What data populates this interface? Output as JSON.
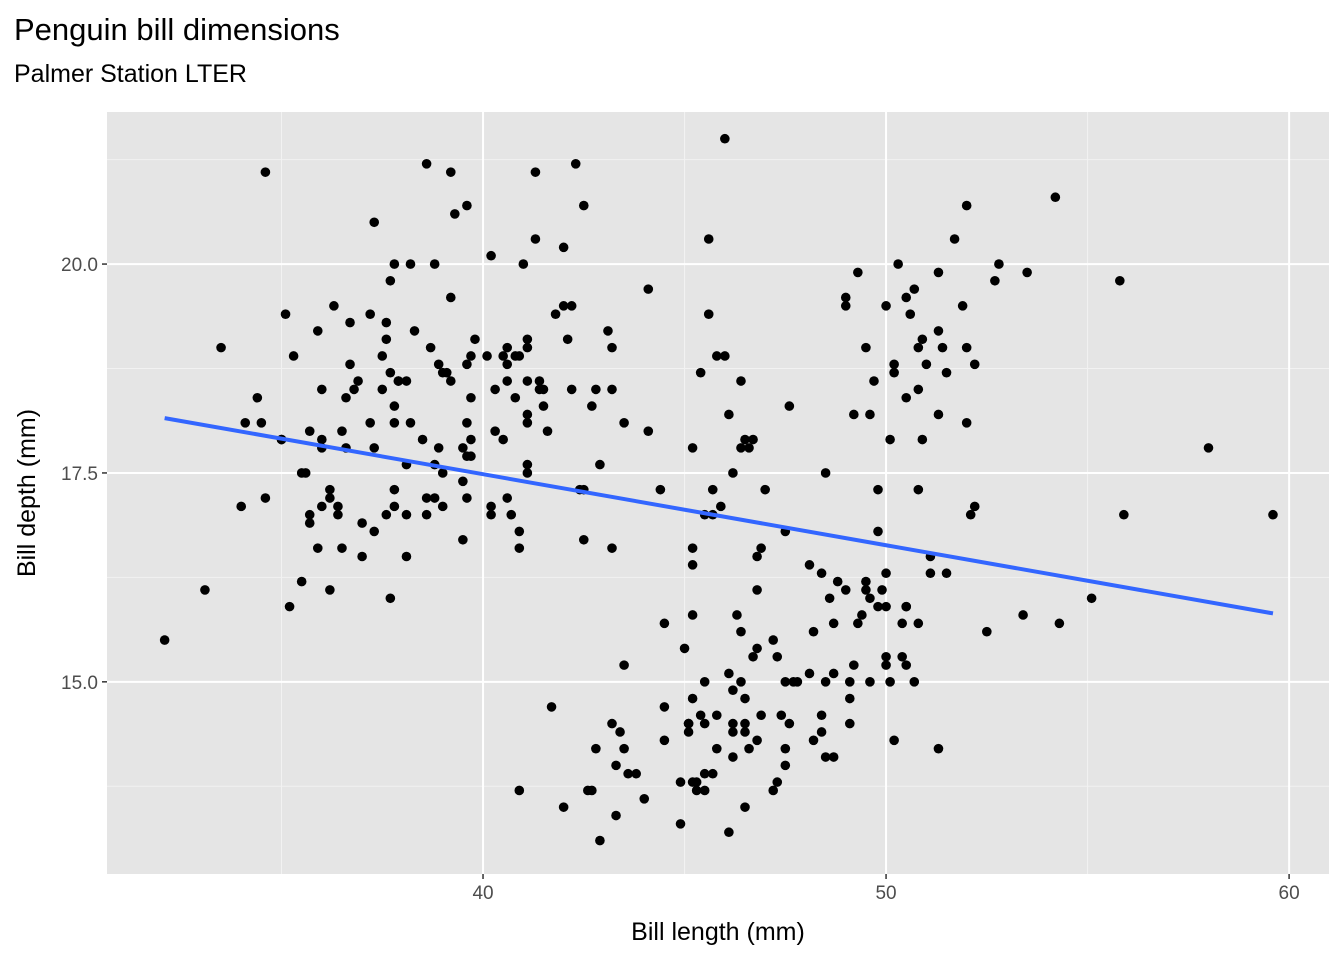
{
  "chart_data": {
    "type": "scatter",
    "title": "Penguin bill dimensions",
    "subtitle": "Palmer Station LTER",
    "xlabel": "Bill length (mm)",
    "ylabel": "Bill depth (mm)",
    "xlim": [
      30.67,
      60.99
    ],
    "ylim": [
      12.7,
      21.82
    ],
    "x_ticks": [
      40,
      50,
      60
    ],
    "x_tick_labels": [
      "40",
      "50",
      "60"
    ],
    "y_ticks": [
      15,
      17.5,
      20
    ],
    "y_tick_labels": [
      "15.0",
      "17.5",
      "20.0"
    ],
    "grid": true,
    "point_color": "#000000",
    "panel_background": "#E5E5E5",
    "trend_line": {
      "method": "lm",
      "color": "#3366FF",
      "intercept": 20.885,
      "slope": -0.085,
      "x_range": [
        32.1,
        59.6
      ]
    },
    "points": [
      [
        39.1,
        18.7
      ],
      [
        39.5,
        17.4
      ],
      [
        40.3,
        18
      ],
      [
        36.7,
        19.3
      ],
      [
        39.3,
        20.6
      ],
      [
        38.9,
        17.8
      ],
      [
        39.2,
        19.6
      ],
      [
        34.1,
        18.1
      ],
      [
        42,
        20.2
      ],
      [
        37.8,
        17.1
      ],
      [
        37.8,
        17.3
      ],
      [
        41.1,
        17.6
      ],
      [
        38.6,
        21.2
      ],
      [
        34.6,
        21.1
      ],
      [
        36.6,
        17.8
      ],
      [
        38.7,
        19
      ],
      [
        42.5,
        20.7
      ],
      [
        34.4,
        18.4
      ],
      [
        46,
        21.5
      ],
      [
        37.8,
        18.3
      ],
      [
        37.7,
        18.7
      ],
      [
        35.9,
        19.2
      ],
      [
        38.2,
        18.1
      ],
      [
        38.8,
        17.2
      ],
      [
        35.3,
        18.9
      ],
      [
        40.6,
        18.6
      ],
      [
        40.5,
        17.9
      ],
      [
        37.9,
        18.6
      ],
      [
        40.5,
        18.9
      ],
      [
        39.5,
        16.7
      ],
      [
        37.2,
        18.1
      ],
      [
        39.5,
        17.8
      ],
      [
        40.9,
        18.9
      ],
      [
        36.4,
        17
      ],
      [
        39.2,
        21.1
      ],
      [
        38.8,
        20
      ],
      [
        42.2,
        18.5
      ],
      [
        37.6,
        19.3
      ],
      [
        39.8,
        19.1
      ],
      [
        36.5,
        18
      ],
      [
        40.8,
        18.4
      ],
      [
        36,
        18.5
      ],
      [
        44.1,
        19.7
      ],
      [
        37,
        16.9
      ],
      [
        39.6,
        18.8
      ],
      [
        41.1,
        19
      ],
      [
        37.5,
        18.9
      ],
      [
        36,
        17.9
      ],
      [
        42.3,
        21.2
      ],
      [
        39.6,
        17.7
      ],
      [
        40.1,
        18.9
      ],
      [
        35,
        17.9
      ],
      [
        42,
        19.5
      ],
      [
        34.5,
        18.1
      ],
      [
        41.4,
        18.6
      ],
      [
        39,
        17.5
      ],
      [
        40.6,
        18.8
      ],
      [
        36.5,
        16.6
      ],
      [
        37.6,
        19.1
      ],
      [
        35.7,
        16.9
      ],
      [
        41.3,
        21.1
      ],
      [
        37.6,
        17
      ],
      [
        41.1,
        18.2
      ],
      [
        36.4,
        17.1
      ],
      [
        41.6,
        18
      ],
      [
        35.5,
        16.2
      ],
      [
        41.1,
        19.1
      ],
      [
        35.9,
        16.6
      ],
      [
        41.8,
        19.4
      ],
      [
        33.5,
        19
      ],
      [
        39.7,
        18.4
      ],
      [
        39.6,
        17.2
      ],
      [
        45.8,
        18.9
      ],
      [
        35.5,
        17.5
      ],
      [
        42.8,
        18.5
      ],
      [
        40.9,
        16.8
      ],
      [
        37.2,
        19.4
      ],
      [
        36.2,
        16.1
      ],
      [
        42.1,
        19.1
      ],
      [
        34.6,
        17.2
      ],
      [
        42.9,
        17.6
      ],
      [
        36.7,
        18.8
      ],
      [
        35.1,
        19.4
      ],
      [
        37.3,
        17.8
      ],
      [
        41.3,
        20.3
      ],
      [
        36.3,
        19.5
      ],
      [
        36.9,
        18.6
      ],
      [
        38.3,
        19.2
      ],
      [
        38.9,
        18.8
      ],
      [
        35.7,
        18
      ],
      [
        41.1,
        18.1
      ],
      [
        34,
        17.1
      ],
      [
        39.6,
        18.1
      ],
      [
        36.2,
        17.3
      ],
      [
        40.8,
        18.9
      ],
      [
        38.1,
        18.6
      ],
      [
        40.3,
        18.5
      ],
      [
        33.1,
        16.1
      ],
      [
        43.2,
        18.5
      ],
      [
        35,
        17.9
      ],
      [
        41,
        20
      ],
      [
        37.7,
        16
      ],
      [
        37.8,
        20
      ],
      [
        37.9,
        18.6
      ],
      [
        39.7,
        18.9
      ],
      [
        38.6,
        17.2
      ],
      [
        38.2,
        20
      ],
      [
        38.1,
        17
      ],
      [
        43.2,
        19
      ],
      [
        38.1,
        16.5
      ],
      [
        45.6,
        20.3
      ],
      [
        39.7,
        17.7
      ],
      [
        42.2,
        19.5
      ],
      [
        39.6,
        20.7
      ],
      [
        42.7,
        18.3
      ],
      [
        38.6,
        17
      ],
      [
        37.3,
        20.5
      ],
      [
        35.7,
        17
      ],
      [
        41.1,
        18.6
      ],
      [
        36.2,
        17.2
      ],
      [
        37.7,
        19.8
      ],
      [
        40.2,
        17
      ],
      [
        41.4,
        18.5
      ],
      [
        35.2,
        15.9
      ],
      [
        40.6,
        19
      ],
      [
        38.8,
        17.6
      ],
      [
        41.5,
        18.3
      ],
      [
        39,
        17.1
      ],
      [
        44.1,
        18
      ],
      [
        38.5,
        17.9
      ],
      [
        43.1,
        19.2
      ],
      [
        36.8,
        18.5
      ],
      [
        37.5,
        18.5
      ],
      [
        38.1,
        17.6
      ],
      [
        41.1,
        17.5
      ],
      [
        35.6,
        17.5
      ],
      [
        40.2,
        20.1
      ],
      [
        37,
        16.5
      ],
      [
        39.7,
        17.9
      ],
      [
        40.2,
        17.1
      ],
      [
        40.6,
        17.2
      ],
      [
        32.1,
        15.5
      ],
      [
        40.7,
        17
      ],
      [
        37.3,
        16.8
      ],
      [
        39,
        18.7
      ],
      [
        39.2,
        18.6
      ],
      [
        36.6,
        18.4
      ],
      [
        36,
        17.8
      ],
      [
        37.8,
        18.1
      ],
      [
        36,
        17.1
      ],
      [
        41.5,
        18.5
      ],
      [
        46.1,
        13.2
      ],
      [
        50,
        16.3
      ],
      [
        48.7,
        14.1
      ],
      [
        50,
        15.2
      ],
      [
        47.6,
        14.5
      ],
      [
        46.5,
        13.5
      ],
      [
        45.4,
        14.6
      ],
      [
        46.7,
        15.3
      ],
      [
        43.3,
        13.4
      ],
      [
        46.8,
        15.4
      ],
      [
        40.9,
        13.7
      ],
      [
        49,
        16.1
      ],
      [
        45.5,
        13.7
      ],
      [
        48.4,
        14.6
      ],
      [
        45.8,
        14.6
      ],
      [
        49.3,
        15.7
      ],
      [
        42,
        13.5
      ],
      [
        49.2,
        15.2
      ],
      [
        46.2,
        14.5
      ],
      [
        48.7,
        15.1
      ],
      [
        50.2,
        14.3
      ],
      [
        45.1,
        14.5
      ],
      [
        46.5,
        14.5
      ],
      [
        46.3,
        15.8
      ],
      [
        42.9,
        13.1
      ],
      [
        46.1,
        15.1
      ],
      [
        44.5,
        14.3
      ],
      [
        47.8,
        15
      ],
      [
        48.2,
        14.3
      ],
      [
        50,
        15.3
      ],
      [
        47.3,
        15.3
      ],
      [
        42.8,
        14.2
      ],
      [
        45.1,
        14.5
      ],
      [
        59.6,
        17
      ],
      [
        49.1,
        14.8
      ],
      [
        48.4,
        16.3
      ],
      [
        42.6,
        13.7
      ],
      [
        44.4,
        17.3
      ],
      [
        44,
        13.6
      ],
      [
        48.7,
        15.7
      ],
      [
        42.7,
        13.7
      ],
      [
        49.6,
        16
      ],
      [
        45.3,
        13.7
      ],
      [
        49.6,
        15
      ],
      [
        50.5,
        15.9
      ],
      [
        43.6,
        13.9
      ],
      [
        45.5,
        13.9
      ],
      [
        50.5,
        15.9
      ],
      [
        44.9,
        13.3
      ],
      [
        45.2,
        15.8
      ],
      [
        46.6,
        14.2
      ],
      [
        48.5,
        14.1
      ],
      [
        45.1,
        14.4
      ],
      [
        50.1,
        15
      ],
      [
        46.5,
        14.4
      ],
      [
        45,
        15.4
      ],
      [
        43.8,
        13.9
      ],
      [
        45.5,
        15
      ],
      [
        43.2,
        14.5
      ],
      [
        50.4,
        15.3
      ],
      [
        45.3,
        13.8
      ],
      [
        46.2,
        14.9
      ],
      [
        45.7,
        13.9
      ],
      [
        54.3,
        15.7
      ],
      [
        45.8,
        14.2
      ],
      [
        49.8,
        16.8
      ],
      [
        46.2,
        14.4
      ],
      [
        49.5,
        16.2
      ],
      [
        43.5,
        14.2
      ],
      [
        50.7,
        15
      ],
      [
        47.7,
        15
      ],
      [
        46.4,
        15.6
      ],
      [
        48.2,
        15.6
      ],
      [
        46.5,
        14.8
      ],
      [
        46.4,
        15
      ],
      [
        48.6,
        16
      ],
      [
        47.5,
        14.2
      ],
      [
        51.1,
        16.3
      ],
      [
        45.2,
        13.8
      ],
      [
        45.2,
        16.4
      ],
      [
        49.1,
        14.5
      ],
      [
        52.5,
        15.6
      ],
      [
        47.4,
        14.6
      ],
      [
        50,
        15.9
      ],
      [
        44.9,
        13.8
      ],
      [
        50.8,
        17.3
      ],
      [
        43.4,
        14.4
      ],
      [
        51.3,
        14.2
      ],
      [
        47.5,
        14
      ],
      [
        52.1,
        17
      ],
      [
        47.5,
        15
      ],
      [
        52.2,
        17.1
      ],
      [
        45.5,
        14.5
      ],
      [
        49.5,
        16.1
      ],
      [
        44.5,
        14.7
      ],
      [
        50.8,
        15.7
      ],
      [
        49.4,
        15.8
      ],
      [
        46.9,
        14.6
      ],
      [
        48.4,
        14.4
      ],
      [
        51.1,
        16.5
      ],
      [
        48.5,
        15
      ],
      [
        55.9,
        17
      ],
      [
        47.2,
        15.5
      ],
      [
        49.1,
        15
      ],
      [
        47.3,
        13.8
      ],
      [
        46.8,
        16.1
      ],
      [
        41.7,
        14.7
      ],
      [
        53.4,
        15.8
      ],
      [
        43.3,
        14
      ],
      [
        48.1,
        15.1
      ],
      [
        50.5,
        15.2
      ],
      [
        49.8,
        15.9
      ],
      [
        43.5,
        15.2
      ],
      [
        51.5,
        16.3
      ],
      [
        46.2,
        14.1
      ],
      [
        55.1,
        16
      ],
      [
        44.5,
        15.7
      ],
      [
        48.8,
        16.2
      ],
      [
        47.2,
        13.7
      ],
      [
        46.8,
        14.3
      ],
      [
        50.4,
        15.7
      ],
      [
        45.2,
        14.8
      ],
      [
        49.9,
        16.1
      ],
      [
        46.5,
        17.9
      ],
      [
        50,
        19.5
      ],
      [
        51.3,
        19.2
      ],
      [
        45.4,
        18.7
      ],
      [
        52.7,
        19.8
      ],
      [
        45.2,
        17.8
      ],
      [
        46.1,
        18.2
      ],
      [
        51.3,
        18.2
      ],
      [
        46,
        18.9
      ],
      [
        51.3,
        19.9
      ],
      [
        46.6,
        17.8
      ],
      [
        51.7,
        20.3
      ],
      [
        47,
        17.3
      ],
      [
        52,
        18.1
      ],
      [
        45.9,
        17.1
      ],
      [
        50.5,
        19.6
      ],
      [
        50.3,
        20
      ],
      [
        58,
        17.8
      ],
      [
        46.4,
        18.6
      ],
      [
        49.2,
        18.2
      ],
      [
        42.4,
        17.3
      ],
      [
        48.5,
        17.5
      ],
      [
        43.2,
        16.6
      ],
      [
        50.6,
        19.4
      ],
      [
        46.7,
        17.9
      ],
      [
        52,
        19
      ],
      [
        50.5,
        18.4
      ],
      [
        49.5,
        19
      ],
      [
        46.4,
        17.8
      ],
      [
        52.8,
        20
      ],
      [
        40.9,
        16.6
      ],
      [
        54.2,
        20.8
      ],
      [
        42.5,
        16.7
      ],
      [
        51,
        18.8
      ],
      [
        49.7,
        18.6
      ],
      [
        47.5,
        16.8
      ],
      [
        47.6,
        18.3
      ],
      [
        52,
        20.7
      ],
      [
        46.9,
        16.6
      ],
      [
        53.5,
        19.9
      ],
      [
        49,
        19.5
      ],
      [
        46.2,
        17.5
      ],
      [
        50.9,
        19.1
      ],
      [
        45.5,
        17
      ],
      [
        50.9,
        17.9
      ],
      [
        50.8,
        18.5
      ],
      [
        50.1,
        17.9
      ],
      [
        49,
        19.6
      ],
      [
        51.5,
        18.7
      ],
      [
        49.8,
        17.3
      ],
      [
        48.1,
        16.4
      ],
      [
        51.4,
        19
      ],
      [
        45.7,
        17.3
      ],
      [
        50.7,
        19.7
      ],
      [
        42.5,
        17.3
      ],
      [
        52.2,
        18.8
      ],
      [
        45.2,
        16.6
      ],
      [
        49.3,
        19.9
      ],
      [
        50.2,
        18.8
      ],
      [
        45.6,
        19.4
      ],
      [
        51.9,
        19.5
      ],
      [
        46.8,
        16.5
      ],
      [
        45.7,
        17
      ],
      [
        55.8,
        19.8
      ],
      [
        43.5,
        18.1
      ],
      [
        49.6,
        18.2
      ],
      [
        50.8,
        19
      ],
      [
        50.2,
        18.7
      ]
    ]
  }
}
